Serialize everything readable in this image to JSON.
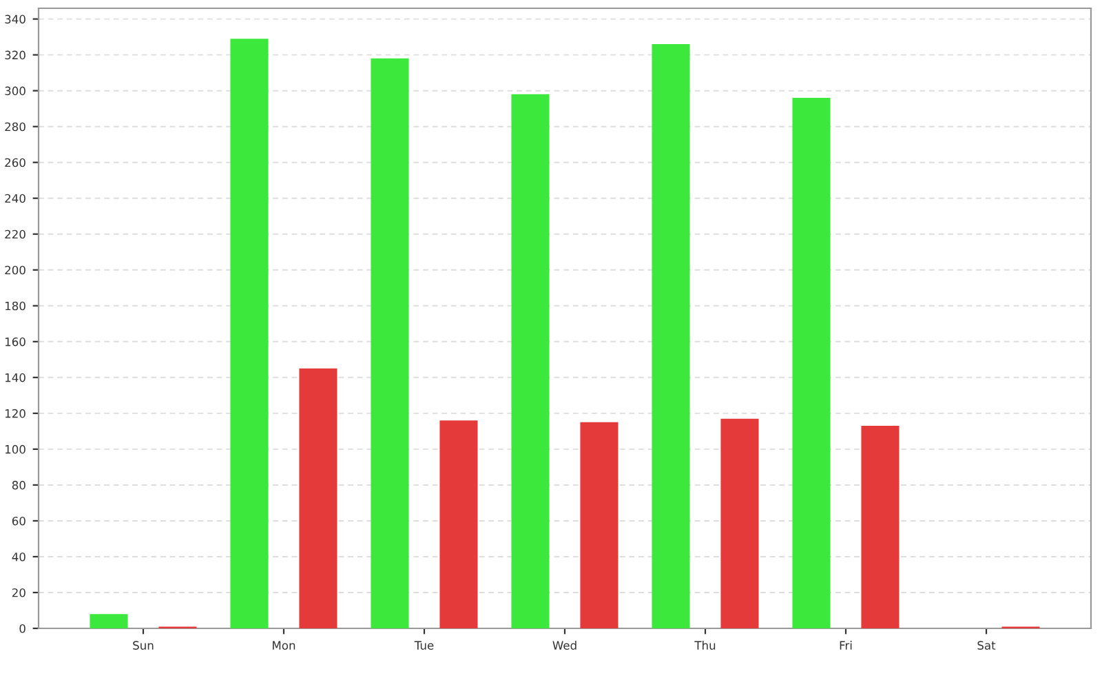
{
  "chart_data": {
    "type": "bar",
    "categories": [
      "Sun",
      "Mon",
      "Tue",
      "Wed",
      "Thu",
      "Fri",
      "Sat"
    ],
    "series": [
      {
        "color": "#3de83d",
        "values": [
          8,
          329,
          318,
          298,
          326,
          296,
          0
        ]
      },
      {
        "color": "#e53a3a",
        "values": [
          1,
          145,
          116,
          115,
          117,
          113,
          1
        ]
      }
    ],
    "ylim": [
      0,
      346
    ],
    "yticks": [
      0,
      20,
      40,
      60,
      80,
      100,
      120,
      140,
      160,
      180,
      200,
      220,
      240,
      260,
      280,
      300,
      320,
      340
    ],
    "grid": "y",
    "legend": false
  }
}
